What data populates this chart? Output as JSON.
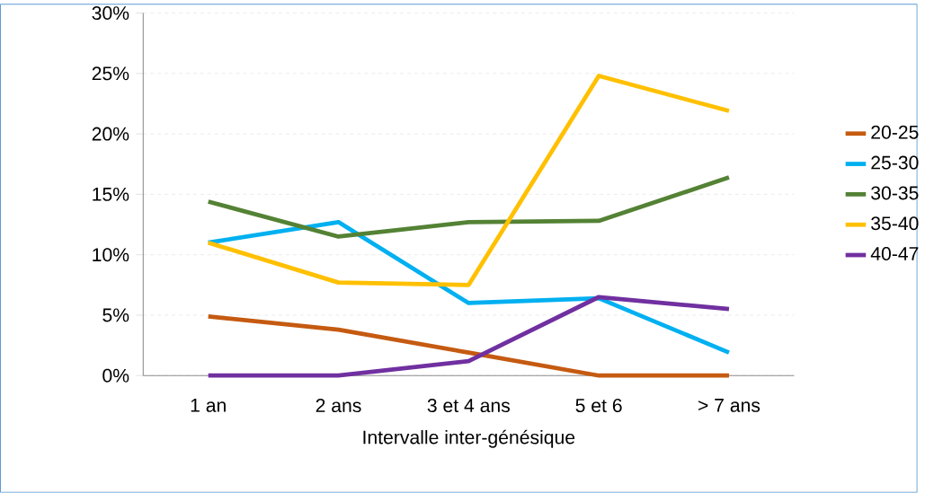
{
  "chart_data": {
    "type": "line",
    "xlabel": "Intervalle inter-génésique",
    "categories": [
      "1 an",
      "2 ans",
      "3 et 4 ans",
      "5 et 6",
      "> 7 ans"
    ],
    "series": [
      {
        "name": "20-25",
        "color": "#c55a11",
        "values": [
          4.9,
          3.8,
          1.9,
          0,
          0
        ]
      },
      {
        "name": "25-30",
        "color": "#00b0f0",
        "values": [
          11.0,
          12.7,
          6.0,
          6.4,
          1.9
        ]
      },
      {
        "name": "30-35",
        "color": "#548235",
        "values": [
          14.4,
          11.5,
          12.7,
          12.8,
          16.4
        ]
      },
      {
        "name": "35-40",
        "color": "#ffc000",
        "values": [
          11.0,
          7.7,
          7.5,
          24.8,
          21.9
        ]
      },
      {
        "name": "40-47",
        "color": "#7030a0",
        "values": [
          0,
          0,
          1.2,
          6.5,
          5.5
        ]
      }
    ],
    "ylim": [
      0,
      30
    ],
    "yticks": [
      {
        "value": 0,
        "label": "0%"
      },
      {
        "value": 5,
        "label": "5%"
      },
      {
        "value": 10,
        "label": "10%"
      },
      {
        "value": 15,
        "label": "15%"
      },
      {
        "value": 20,
        "label": "20%"
      },
      {
        "value": 25,
        "label": "25%"
      },
      {
        "value": 30,
        "label": "30%"
      }
    ],
    "grid": "y",
    "legend": "right",
    "marker": "none",
    "line_style": "solid"
  }
}
